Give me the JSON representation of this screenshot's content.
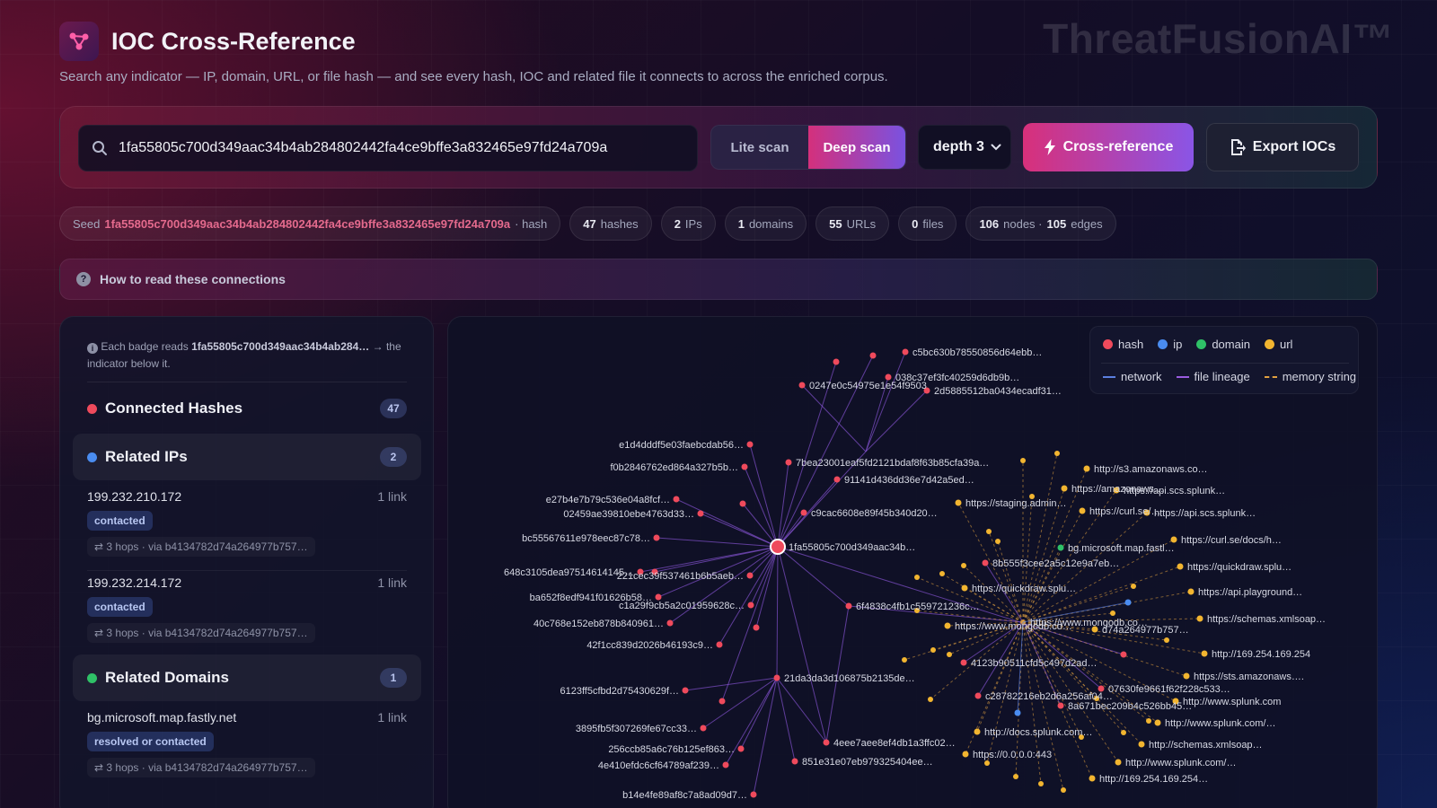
{
  "brand": "ThreatFusionAI™",
  "header": {
    "title": "IOC Cross-Reference",
    "subtitle": "Search any indicator — IP, domain, URL, or file hash — and see every hash, IOC and related file it connects to across the enriched corpus."
  },
  "search": {
    "value": "1fa55805c700d349aac34b4ab284802442fa4ce9bffe3a832465e97fd24a709a",
    "scan_modes": [
      "Lite scan",
      "Deep scan"
    ],
    "active_mode": "Deep scan",
    "depth_label": "depth 3",
    "cross_reference_label": "Cross-reference",
    "export_label": "Export IOCs"
  },
  "stats": {
    "seed_label": "Seed",
    "seed_value": "1fa55805c700d349aac34b4ab284802442fa4ce9bffe3a832465e97fd24a709a",
    "seed_type": "· hash",
    "hashes": "47",
    "hashes_label": "hashes",
    "ips": "2",
    "ips_label": "IPs",
    "domains": "1",
    "domains_label": "domains",
    "urls": "55",
    "urls_label": "URLs",
    "files": "0",
    "files_label": "files",
    "nodes": "106",
    "nodes_label": "nodes ·",
    "edges": "105",
    "edges_label": "edges"
  },
  "howto": {
    "label": "How to read these connections"
  },
  "left_panel": {
    "note_prefix": "Each badge reads",
    "note_seed": "1fa55805c700d349aac34b4ab284…",
    "note_suffix": "→ the indicator below it.",
    "sections": {
      "hashes": {
        "title": "Connected Hashes",
        "count": "47",
        "color": "#ef4a5c"
      },
      "ips": {
        "title": "Related IPs",
        "count": "2",
        "color": "#4a8cf0"
      },
      "domains": {
        "title": "Related Domains",
        "count": "1",
        "color": "#2fc167"
      }
    },
    "ip_entries": [
      {
        "value": "199.232.210.172",
        "links": "1 link",
        "relation": "contacted",
        "hops": "3 hops · via b4134782d74a264977b757…"
      },
      {
        "value": "199.232.214.172",
        "links": "1 link",
        "relation": "contacted",
        "hops": "3 hops · via b4134782d74a264977b757…"
      }
    ],
    "domain_entries": [
      {
        "value": "bg.microsoft.map.fastly.net",
        "links": "1 link",
        "relation": "resolved or contacted",
        "hops": "3 hops · via b4134782d74a264977b757…"
      }
    ]
  },
  "legend": {
    "node_types": [
      {
        "label": "hash",
        "color": "#ef4a5c"
      },
      {
        "label": "ip",
        "color": "#4a8cf0"
      },
      {
        "label": "domain",
        "color": "#2fc167"
      },
      {
        "label": "url",
        "color": "#f2b530"
      }
    ],
    "edge_types": [
      {
        "label": "network",
        "color": "#5b7fe0",
        "style": "solid"
      },
      {
        "label": "file lineage",
        "color": "#9a5ce0",
        "style": "solid"
      },
      {
        "label": "memory string",
        "color": "#e0a040",
        "style": "dashed"
      }
    ]
  },
  "graph": {
    "seed_label": "1fa55805c700d349aac34b…",
    "hub_labels": [
      "6f4838c4fb1c559721236c…",
      "21da3da3d106875b2135de…",
      "4eee7aee8ef4db1a3ffc02…",
      "https://www.mongodb.co…"
    ],
    "hash_labels": [
      "c5bc630b78550856d64ebb…",
      "038c37ef3fc40259d6db9b…",
      "0247e0c54975e1e54f9503",
      "2d5885512ba0434ecadf31…",
      "e1d4dddf5e03faebcdab56…",
      "f0b2846762ed864a327b5b…",
      "7bea23001eaf5fd2121bdaf8f63b85cfa39a…",
      "91141d436dd36e7d42a5ed…",
      "e27b4e7b79c536e04a8fcf…",
      "02459ae39810ebe4763d33…",
      "c9cac6608e89f45b340d20…",
      "bc55567611e978eec87c78…",
      "648c3105dea97514614145…",
      "221cec39f537461b6b5aeb…",
      "ba652f8edf941f01626b58…",
      "c1a29f9cb5a2c01959628c…",
      "40c768e152eb878b840961…",
      "42f1cc839d2026b46193c9…",
      "6123ff5cfbd2d75430629f…",
      "3895fb5f307269fe67cc33…",
      "256ccb85a6c76b125ef863…",
      "4e410efdc6cf64789af239…",
      "851e31e07eb979325404ee…",
      "b14e4fe89af8c7a8ad09d7…",
      "8b555f3cee2a5c12e9a7eb…",
      "4123b90511cfd5c497d2ad…",
      "c28782216eb2d6a256af04…",
      "07630fe9661f62f228c533…",
      "8a671bec209b4c526bb45…"
    ],
    "url_labels": [
      "http://s3.amazonaws.co…",
      "https://amazonaws…",
      "https://api.scs.splunk…",
      "https://staging.admin…",
      "https://curl.se/…",
      "https://api.scs.splunk…",
      "bg.microsoft.map.fastl…",
      "https://curl.se/docs/h…",
      "https://quickdraw.splu…",
      "https://quickdraw.splu…",
      "https://api.playground…",
      "https://www.mongodb.co…",
      "https://schemas.xmlsoap…",
      "d74a264977b757…",
      "http://169.254.169.254",
      "https://sts.amazonaws….",
      "http://www.splunk.com",
      "http://www.splunk.com/…",
      "http://docs.splunk.com…",
      "http://schemas.xmlsoap…",
      "https://0.0.0.0:443",
      "http://www.splunk.com/…",
      "http://169.254.169.254…"
    ]
  }
}
